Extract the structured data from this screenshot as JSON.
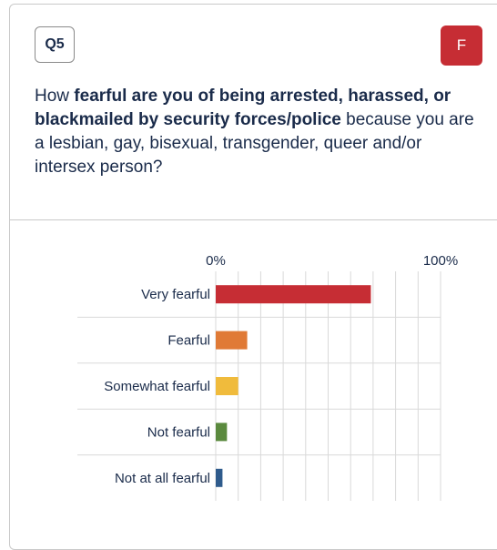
{
  "header": {
    "question_number": "Q5",
    "group_badge": "F",
    "question_text": {
      "part1": "How ",
      "bold": "fearful are you of being arrested, harassed, or blackmailed by security forces/police",
      "part2": " because you are a lesbian, gay, bisexual, transgender, queer and/or intersex person?"
    }
  },
  "colors": {
    "badge_red": "#c62d34"
  },
  "chart_data": {
    "type": "bar",
    "orientation": "horizontal",
    "categories": [
      "Very fearful",
      "Fearful",
      "Somewhat fearful",
      "Not fearful",
      "Not at all fearful"
    ],
    "values": [
      69,
      14,
      10,
      5,
      3
    ],
    "colors": [
      "#c62d34",
      "#e07a36",
      "#f0bb3c",
      "#5b8a3e",
      "#2f5b8c"
    ],
    "xlim": [
      0,
      100
    ],
    "tick_labels": [
      "0%",
      "100%"
    ],
    "grid": true
  }
}
